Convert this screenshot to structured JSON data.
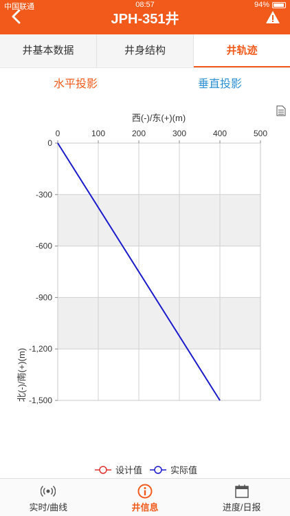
{
  "status_bar": {
    "carrier": "中国联通",
    "time": "08:57",
    "battery": "94%"
  },
  "header": {
    "title": "JPH-351井"
  },
  "tabs": [
    {
      "label": "井基本数据",
      "active": false
    },
    {
      "label": "井身结构",
      "active": false
    },
    {
      "label": "井轨迹",
      "active": true
    }
  ],
  "subtabs": {
    "horizontal": "水平投影",
    "vertical": "垂直投影"
  },
  "colors": {
    "accent": "#f25a1c",
    "blue": "#2b8fd4",
    "series_design": "#e03030",
    "series_actual": "#1a1acc"
  },
  "chart_data": {
    "type": "line",
    "xlabel": "西(-)/东(+)(m)",
    "ylabel": "北(-)/南(+)(m)",
    "x_ticks": [
      "0",
      "100",
      "200",
      "300",
      "400",
      "500"
    ],
    "y_ticks": [
      "0",
      "-300",
      "-600",
      "-900",
      "-1,200",
      "-1,500"
    ],
    "xlim": [
      0,
      500
    ],
    "ylim": [
      -1500,
      0
    ],
    "grid": true,
    "legend_position": "bottom",
    "series": [
      {
        "name": "设计值",
        "color": "#e03030",
        "x": [],
        "y": []
      },
      {
        "name": "实际值",
        "color": "#1a1acc",
        "x": [
          0,
          400
        ],
        "y": [
          0,
          -1500
        ]
      }
    ]
  },
  "bottom_nav": [
    {
      "label": "实时/曲线",
      "icon": "broadcast-icon",
      "active": false
    },
    {
      "label": "井信息",
      "icon": "info-icon",
      "active": true
    },
    {
      "label": "进度/日报",
      "icon": "calendar-icon",
      "active": false
    }
  ]
}
